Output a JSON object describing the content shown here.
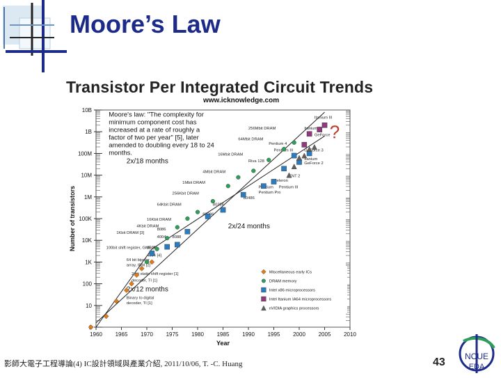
{
  "slide": {
    "title": "Moore’s Law",
    "footer": "影師大電子工程導論(4) IC設計領域與產業介紹, 2011/10/06, T. -C. Huang",
    "page_number": "43",
    "logo_text": "NCUE EDA",
    "accent_color": "#1c2a8a"
  },
  "chart_data": {
    "type": "scatter",
    "title": "Transistor Per Integrated Circuit Trends",
    "subtitle": "www.icknowledge.com",
    "xlabel": "Year",
    "ylabel": "Number of transistors",
    "x_ticks": [
      1960,
      1965,
      1970,
      1975,
      1980,
      1985,
      1990,
      1995,
      2000,
      2005,
      2010
    ],
    "y_ticks": [
      "1",
      "10",
      "100",
      "1K",
      "10K",
      "100K",
      "1M",
      "10M",
      "100M",
      "1B",
      "10B"
    ],
    "xlim": [
      1960,
      2010
    ],
    "ylim_log10": [
      0,
      10
    ],
    "y_scale": "log",
    "grid": false,
    "legend_position": "bottom-right",
    "quote": "Moore's law: \"The complexity for minimum component cost has increased at a rate of roughly a factor of two per year\" [5], later amended to doubling every 18 to 24 months.",
    "trend_labels": [
      "2x/18 months",
      "2x/24 months",
      "2x/12 months"
    ],
    "question_mark": "?",
    "series": [
      {
        "name": "Miscellaneous early ICs",
        "marker": "diamond",
        "color": "#e07b1a",
        "points": [
          [
            1959,
            0
          ],
          [
            1962,
            0.5
          ],
          [
            1964,
            1.2
          ],
          [
            1966,
            1.7
          ],
          [
            1967,
            2.0
          ],
          [
            1968,
            2.4
          ],
          [
            1969,
            2.7
          ],
          [
            1971,
            3.0
          ]
        ]
      },
      {
        "name": "DRAM memory",
        "marker": "circle",
        "color": "#2e9e5b",
        "points": [
          [
            1970,
            3.0
          ],
          [
            1972,
            3.6
          ],
          [
            1974,
            4.1
          ],
          [
            1976,
            4.6
          ],
          [
            1978,
            5.0
          ],
          [
            1980,
            5.3
          ],
          [
            1983,
            5.8
          ],
          [
            1986,
            6.5
          ],
          [
            1988,
            6.9
          ],
          [
            1991,
            7.2
          ],
          [
            1994,
            7.7
          ],
          [
            1997,
            8.2
          ],
          [
            1999,
            8.5
          ]
        ]
      },
      {
        "name": "Intel x86 microprocessors",
        "marker": "square",
        "color": "#2a7bbf",
        "points": [
          [
            1971,
            3.4
          ],
          [
            1974,
            3.7
          ],
          [
            1976,
            3.8
          ],
          [
            1978,
            4.4
          ],
          [
            1982,
            5.1
          ],
          [
            1985,
            5.4
          ],
          [
            1989,
            6.1
          ],
          [
            1993,
            6.5
          ],
          [
            1995,
            6.7
          ],
          [
            1997,
            7.3
          ],
          [
            1999,
            7.9
          ],
          [
            2000,
            7.6
          ],
          [
            2002,
            8.0
          ]
        ]
      },
      {
        "name": "Intel Itanium IA64 microprocessors",
        "marker": "square",
        "color": "#8e3a7d",
        "points": [
          [
            2001,
            8.4
          ],
          [
            2002,
            8.9
          ],
          [
            2004,
            9.1
          ],
          [
            2005,
            9.3
          ]
        ]
      },
      {
        "name": "nVIDIA graphics processors",
        "marker": "triangle",
        "color": "#606060",
        "points": [
          [
            1998,
            7.0
          ],
          [
            1999,
            7.4
          ],
          [
            2000,
            7.8
          ],
          [
            2001,
            7.9
          ],
          [
            2002,
            8.2
          ],
          [
            2003,
            8.3
          ]
        ]
      }
    ],
    "annotations": [
      {
        "text": "Itanium III",
        "x": 2003,
        "y": 9.6
      },
      {
        "text": "Itanium II",
        "x": 2001,
        "y": 9.1
      },
      {
        "text": "GeForce",
        "x": 2003,
        "y": 8.8
      },
      {
        "text": "GeForce 3",
        "x": 2001,
        "y": 8.1
      },
      {
        "text": "Itanium",
        "x": 2001,
        "y": 7.7
      },
      {
        "text": "GeForce 2",
        "x": 2001,
        "y": 7.5
      },
      {
        "text": "256Mbit DRAM",
        "x": 1990,
        "y": 9.1
      },
      {
        "text": "64Mbit DRAM",
        "x": 1988,
        "y": 8.6
      },
      {
        "text": "Pentium 4",
        "x": 1994,
        "y": 8.4
      },
      {
        "text": "Pentium III",
        "x": 1995,
        "y": 8.1
      },
      {
        "text": "16Mbit DRAM",
        "x": 1984,
        "y": 7.9
      },
      {
        "text": "Riva 128",
        "x": 1990,
        "y": 7.6
      },
      {
        "text": "4Mbit DRAM",
        "x": 1981,
        "y": 7.1
      },
      {
        "text": "TNT 2",
        "x": 1998,
        "y": 6.9
      },
      {
        "text": "1Mbit DRAM",
        "x": 1977,
        "y": 6.6
      },
      {
        "text": "Celeron",
        "x": 1995,
        "y": 6.7
      },
      {
        "text": "Pentium",
        "x": 1992,
        "y": 6.4
      },
      {
        "text": "Pentium III",
        "x": 1996,
        "y": 6.4
      },
      {
        "text": "Pentium Pro",
        "x": 1992,
        "y": 6.15
      },
      {
        "text": "80486",
        "x": 1989,
        "y": 5.9
      },
      {
        "text": "256Kbit DRAM",
        "x": 1975,
        "y": 6.1
      },
      {
        "text": "64Kbit DRAM",
        "x": 1972,
        "y": 5.6
      },
      {
        "text": "80386",
        "x": 1983,
        "y": 5.6
      },
      {
        "text": "80286",
        "x": 1981,
        "y": 5.15
      },
      {
        "text": "16Kbit DRAM",
        "x": 1970,
        "y": 4.9
      },
      {
        "text": "4Kbit DRAM",
        "x": 1968,
        "y": 4.6
      },
      {
        "text": "1Kbit DRAM [3]",
        "x": 1964,
        "y": 4.3
      },
      {
        "text": "8086",
        "x": 1972,
        "y": 4.45
      },
      {
        "text": "4004",
        "x": 1972,
        "y": 4.1
      },
      {
        "text": "8088",
        "x": 1975,
        "y": 4.1
      },
      {
        "text": "100bit shift register, GME [1]",
        "x": 1962,
        "y": 3.6
      },
      {
        "text": "8008",
        "x": 1970,
        "y": 3.6
      },
      {
        "text": "4004 [4]",
        "x": 1970,
        "y": 3.25
      },
      {
        "text": "64 bit bipolar",
        "x": 1966,
        "y": 3.05
      },
      {
        "text": "array, IBM [2]",
        "x": 1966,
        "y": 2.8
      },
      {
        "text": "2 bit static shift register [1]",
        "x": 1967,
        "y": 2.4
      },
      {
        "text": "decoder, TI [1]",
        "x": 1967,
        "y": 2.1
      },
      {
        "text": "Binary to digital",
        "x": 1966,
        "y": 1.3
      },
      {
        "text": "decoder, TI [1]",
        "x": 1966,
        "y": 1.05
      }
    ]
  }
}
